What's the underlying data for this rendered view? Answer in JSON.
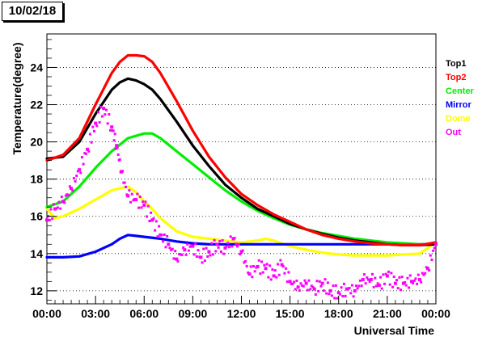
{
  "header": {
    "date_label": "10/02/18"
  },
  "colors": {
    "Top1": "#000000",
    "Top2": "#ff0000",
    "Center": "#00ee00",
    "Mirror": "#0000ff",
    "Dome": "#ffff00",
    "Out": "#ff00ff"
  },
  "chart_data": {
    "type": "scatter",
    "title": "",
    "xlabel": "Universal Time",
    "ylabel": "Temperature(degree)",
    "xlim": [
      0,
      24
    ],
    "ylim": [
      11.3,
      25.8
    ],
    "x_ticks": [
      0,
      3,
      6,
      9,
      12,
      15,
      18,
      21,
      24
    ],
    "x_tick_labels": [
      "00:00",
      "03:00",
      "06:00",
      "09:00",
      "12:00",
      "15:00",
      "18:00",
      "21:00",
      "00:00"
    ],
    "y_ticks": [
      12,
      14,
      16,
      18,
      20,
      22,
      24
    ],
    "y_tick_labels": [
      "12",
      "14",
      "16",
      "18",
      "20",
      "22",
      "24"
    ],
    "grid": "horizontal dotted",
    "legend_position": "right",
    "series": [
      {
        "name": "Top1",
        "x": [
          0,
          1,
          2,
          3,
          4,
          4.5,
          5,
          5.5,
          6,
          6.5,
          7,
          8,
          9,
          10,
          11,
          12,
          13,
          14,
          15,
          16,
          17,
          18,
          19,
          20,
          21,
          22,
          23,
          24
        ],
        "y": [
          19.1,
          19.2,
          20.0,
          21.5,
          22.8,
          23.2,
          23.4,
          23.3,
          23.1,
          22.8,
          22.3,
          21.1,
          19.8,
          18.7,
          17.7,
          17.0,
          16.4,
          16.0,
          15.6,
          15.3,
          15.05,
          14.85,
          14.7,
          14.6,
          14.5,
          14.45,
          14.45,
          14.5
        ]
      },
      {
        "name": "Top2",
        "x": [
          0,
          1,
          2,
          3,
          4,
          4.5,
          5,
          5.5,
          6,
          6.5,
          7,
          8,
          9,
          10,
          11,
          12,
          13,
          14,
          15,
          16,
          17,
          18,
          19,
          20,
          21,
          22,
          23,
          24
        ],
        "y": [
          19.0,
          19.3,
          20.2,
          22.0,
          23.7,
          24.3,
          24.65,
          24.65,
          24.6,
          24.3,
          23.7,
          22.2,
          20.6,
          19.2,
          18.1,
          17.2,
          16.6,
          16.1,
          15.7,
          15.3,
          15.0,
          14.8,
          14.65,
          14.55,
          14.5,
          14.45,
          14.45,
          14.6
        ]
      },
      {
        "name": "Center",
        "x": [
          0,
          1,
          2,
          3,
          4,
          5,
          6,
          6.5,
          7,
          8,
          9,
          10,
          11,
          12,
          13,
          14,
          15,
          16,
          17,
          18,
          19,
          20,
          21,
          22,
          23,
          24
        ],
        "y": [
          16.5,
          16.8,
          17.6,
          18.6,
          19.5,
          20.2,
          20.45,
          20.45,
          20.2,
          19.5,
          18.8,
          18.1,
          17.4,
          16.8,
          16.3,
          15.9,
          15.55,
          15.3,
          15.1,
          14.95,
          14.8,
          14.7,
          14.6,
          14.55,
          14.5,
          14.5
        ]
      },
      {
        "name": "Mirror",
        "x": [
          0,
          1,
          2,
          3,
          4,
          4.5,
          5,
          5.5,
          6,
          7,
          8,
          9,
          10,
          11,
          12,
          13,
          14,
          15,
          16,
          17,
          18,
          19,
          20,
          21,
          22,
          23,
          24
        ],
        "y": [
          13.8,
          13.8,
          13.85,
          14.1,
          14.5,
          14.8,
          15.0,
          14.95,
          14.9,
          14.8,
          14.65,
          14.55,
          14.5,
          14.5,
          14.5,
          14.5,
          14.5,
          14.5,
          14.5,
          14.5,
          14.5,
          14.5,
          14.5,
          14.5,
          14.5,
          14.5,
          14.5
        ]
      },
      {
        "name": "Dome",
        "x": [
          0,
          0.5,
          1,
          2,
          3,
          4,
          4.5,
          5,
          5.5,
          6,
          6.5,
          7,
          8,
          9,
          10,
          11,
          12,
          13,
          13.5,
          14,
          15,
          16,
          17,
          18,
          19,
          20,
          21,
          22,
          23,
          24
        ],
        "y": [
          16.4,
          15.9,
          16.0,
          16.4,
          16.9,
          17.4,
          17.5,
          17.6,
          17.3,
          16.8,
          16.4,
          15.9,
          15.2,
          14.9,
          14.8,
          14.7,
          14.6,
          14.7,
          14.8,
          14.7,
          14.4,
          14.2,
          14.05,
          13.95,
          13.9,
          13.9,
          13.9,
          13.95,
          14.0,
          14.6
        ]
      },
      {
        "name": "Out",
        "x": [
          0,
          0.5,
          1,
          1.5,
          2,
          2.5,
          3,
          3.5,
          4,
          4.3,
          4.6,
          5,
          5.5,
          6,
          6.5,
          7,
          7.5,
          8,
          8.5,
          9,
          9.5,
          10,
          10.5,
          11,
          11.5,
          12,
          12.5,
          13,
          13.5,
          14,
          14.5,
          15,
          15.5,
          16,
          16.5,
          17,
          17.5,
          18,
          18.5,
          19,
          19.5,
          20,
          20.5,
          21,
          21.5,
          22,
          22.5,
          23,
          23.5,
          24
        ],
        "y": [
          15.8,
          16.4,
          16.8,
          17.5,
          18.5,
          19.6,
          21.0,
          21.8,
          20.8,
          19.8,
          18.4,
          17.1,
          16.9,
          16.6,
          15.8,
          15.0,
          14.5,
          13.7,
          14.2,
          14.4,
          13.8,
          14.1,
          14.5,
          14.3,
          14.8,
          14.1,
          12.9,
          13.3,
          13.2,
          12.8,
          13.4,
          12.5,
          12.2,
          12.4,
          12.1,
          12.4,
          12.0,
          11.9,
          12.1,
          12.0,
          12.6,
          12.6,
          12.3,
          12.8,
          12.4,
          12.4,
          12.5,
          12.6,
          13.2,
          14.5
        ]
      }
    ]
  }
}
